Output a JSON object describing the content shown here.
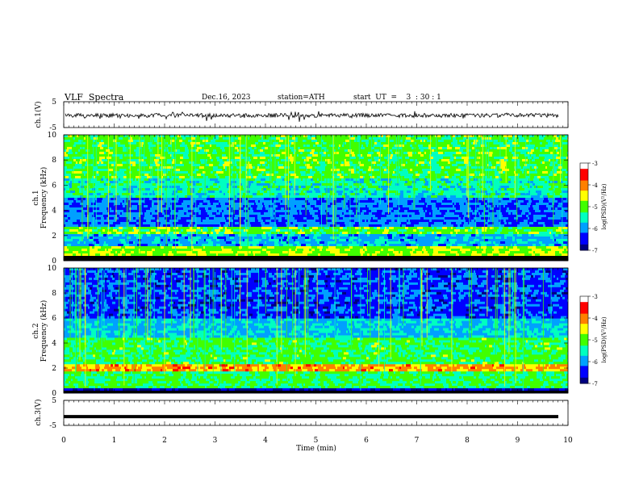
{
  "header": {
    "title": "VLF  Spectra",
    "date": "Dec.16, 2023",
    "station": "station=ATH",
    "start": "start  UT  =    3  : 30 : 1"
  },
  "chart_data": [
    {
      "type": "line",
      "panel": "ch1-waveform",
      "ylabel": "ch.1(V)",
      "yticks": [
        "5",
        "-5"
      ],
      "ylim": [
        -5,
        5
      ],
      "xlim": [
        0,
        10
      ],
      "series": [
        {
          "values_description_range": [
            -1,
            1
          ]
        }
      ]
    },
    {
      "type": "heatmap",
      "panel": "ch1-spectrogram",
      "ylabel_line1": "ch.1",
      "ylabel_line2": "Frequency (kHz)",
      "yticks": [
        "0",
        "2",
        "4",
        "6",
        "8",
        "10"
      ],
      "ylim": [
        0,
        10
      ],
      "xlim": [
        0,
        10
      ],
      "colorbar": {
        "label": "log(PSD)(V²/Hz)",
        "ticks": [
          "-3",
          "-4",
          "-5",
          "-6",
          "-7"
        ],
        "range": [
          -7,
          -3
        ]
      }
    },
    {
      "type": "heatmap",
      "panel": "ch2-spectrogram",
      "ylabel_line1": "ch.2",
      "ylabel_line2": "Frequency (kHz)",
      "yticks": [
        "0",
        "2",
        "4",
        "6",
        "8",
        "10"
      ],
      "ylim": [
        0,
        10
      ],
      "xlim": [
        0,
        10
      ],
      "colorbar": {
        "label": "log(PSD)(V²/Hz)",
        "ticks": [
          "-3",
          "-4",
          "-5",
          "-6",
          "-7"
        ],
        "range": [
          -7,
          -3
        ]
      }
    },
    {
      "type": "line",
      "panel": "ch3-waveform",
      "ylabel": "ch.3(V)",
      "yticks": [
        "5",
        "-5"
      ],
      "ylim": [
        -5,
        5
      ],
      "xlim": [
        0,
        10
      ],
      "series": [
        {
          "values": [
            -1.5,
            -1.5
          ]
        }
      ]
    }
  ],
  "xaxis": {
    "label": "Time  (min)",
    "ticks": [
      "0",
      "1",
      "2",
      "3",
      "4",
      "5",
      "6",
      "7",
      "8",
      "9",
      "10"
    ]
  },
  "colors": {
    "colormap": [
      "#000080",
      "#0000ff",
      "#00a0ff",
      "#00ffc0",
      "#40ff00",
      "#ffff00",
      "#ff8000",
      "#ff0000",
      "#ffffff"
    ]
  }
}
